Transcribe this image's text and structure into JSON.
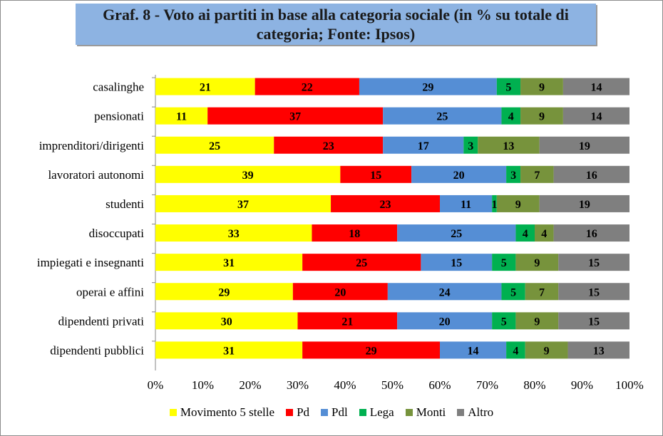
{
  "title": "Graf. 8 - Voto ai partiti in base alla categoria sociale (in % su totale di categoria; Fonte: Ipsos)",
  "chart_data": {
    "type": "bar",
    "orientation": "horizontal",
    "stacked": "percent",
    "categories": [
      "casalinghe",
      "pensionati",
      "imprenditori/dirigenti",
      "lavoratori autonomi",
      "studenti",
      "disoccupati",
      "impiegati e insegnanti",
      "operai e affini",
      "dipendenti privati",
      "dipendenti pubblici"
    ],
    "series": [
      {
        "name": "Movimento 5 stelle",
        "color": "#ffff00",
        "values": [
          21,
          11,
          25,
          39,
          37,
          33,
          31,
          29,
          30,
          31
        ]
      },
      {
        "name": "Pd",
        "color": "#ff0000",
        "values": [
          22,
          37,
          23,
          15,
          23,
          18,
          25,
          20,
          21,
          29
        ]
      },
      {
        "name": "Pdl",
        "color": "#558ed5",
        "values": [
          29,
          25,
          17,
          20,
          11,
          25,
          15,
          24,
          20,
          14
        ]
      },
      {
        "name": "Lega",
        "color": "#00b050",
        "values": [
          5,
          4,
          3,
          3,
          1,
          4,
          5,
          5,
          5,
          4
        ]
      },
      {
        "name": "Monti",
        "color": "#77933c",
        "values": [
          9,
          9,
          13,
          7,
          9,
          4,
          9,
          7,
          9,
          9
        ]
      },
      {
        "name": "Altro",
        "color": "#7f7f7f",
        "values": [
          14,
          14,
          19,
          16,
          19,
          16,
          15,
          15,
          15,
          13
        ]
      }
    ],
    "xlim": [
      0,
      100
    ],
    "x_ticks": [
      "0%",
      "10%",
      "20%",
      "30%",
      "40%",
      "50%",
      "60%",
      "70%",
      "80%",
      "90%",
      "100%"
    ],
    "legend_position": "bottom",
    "grid": false
  }
}
